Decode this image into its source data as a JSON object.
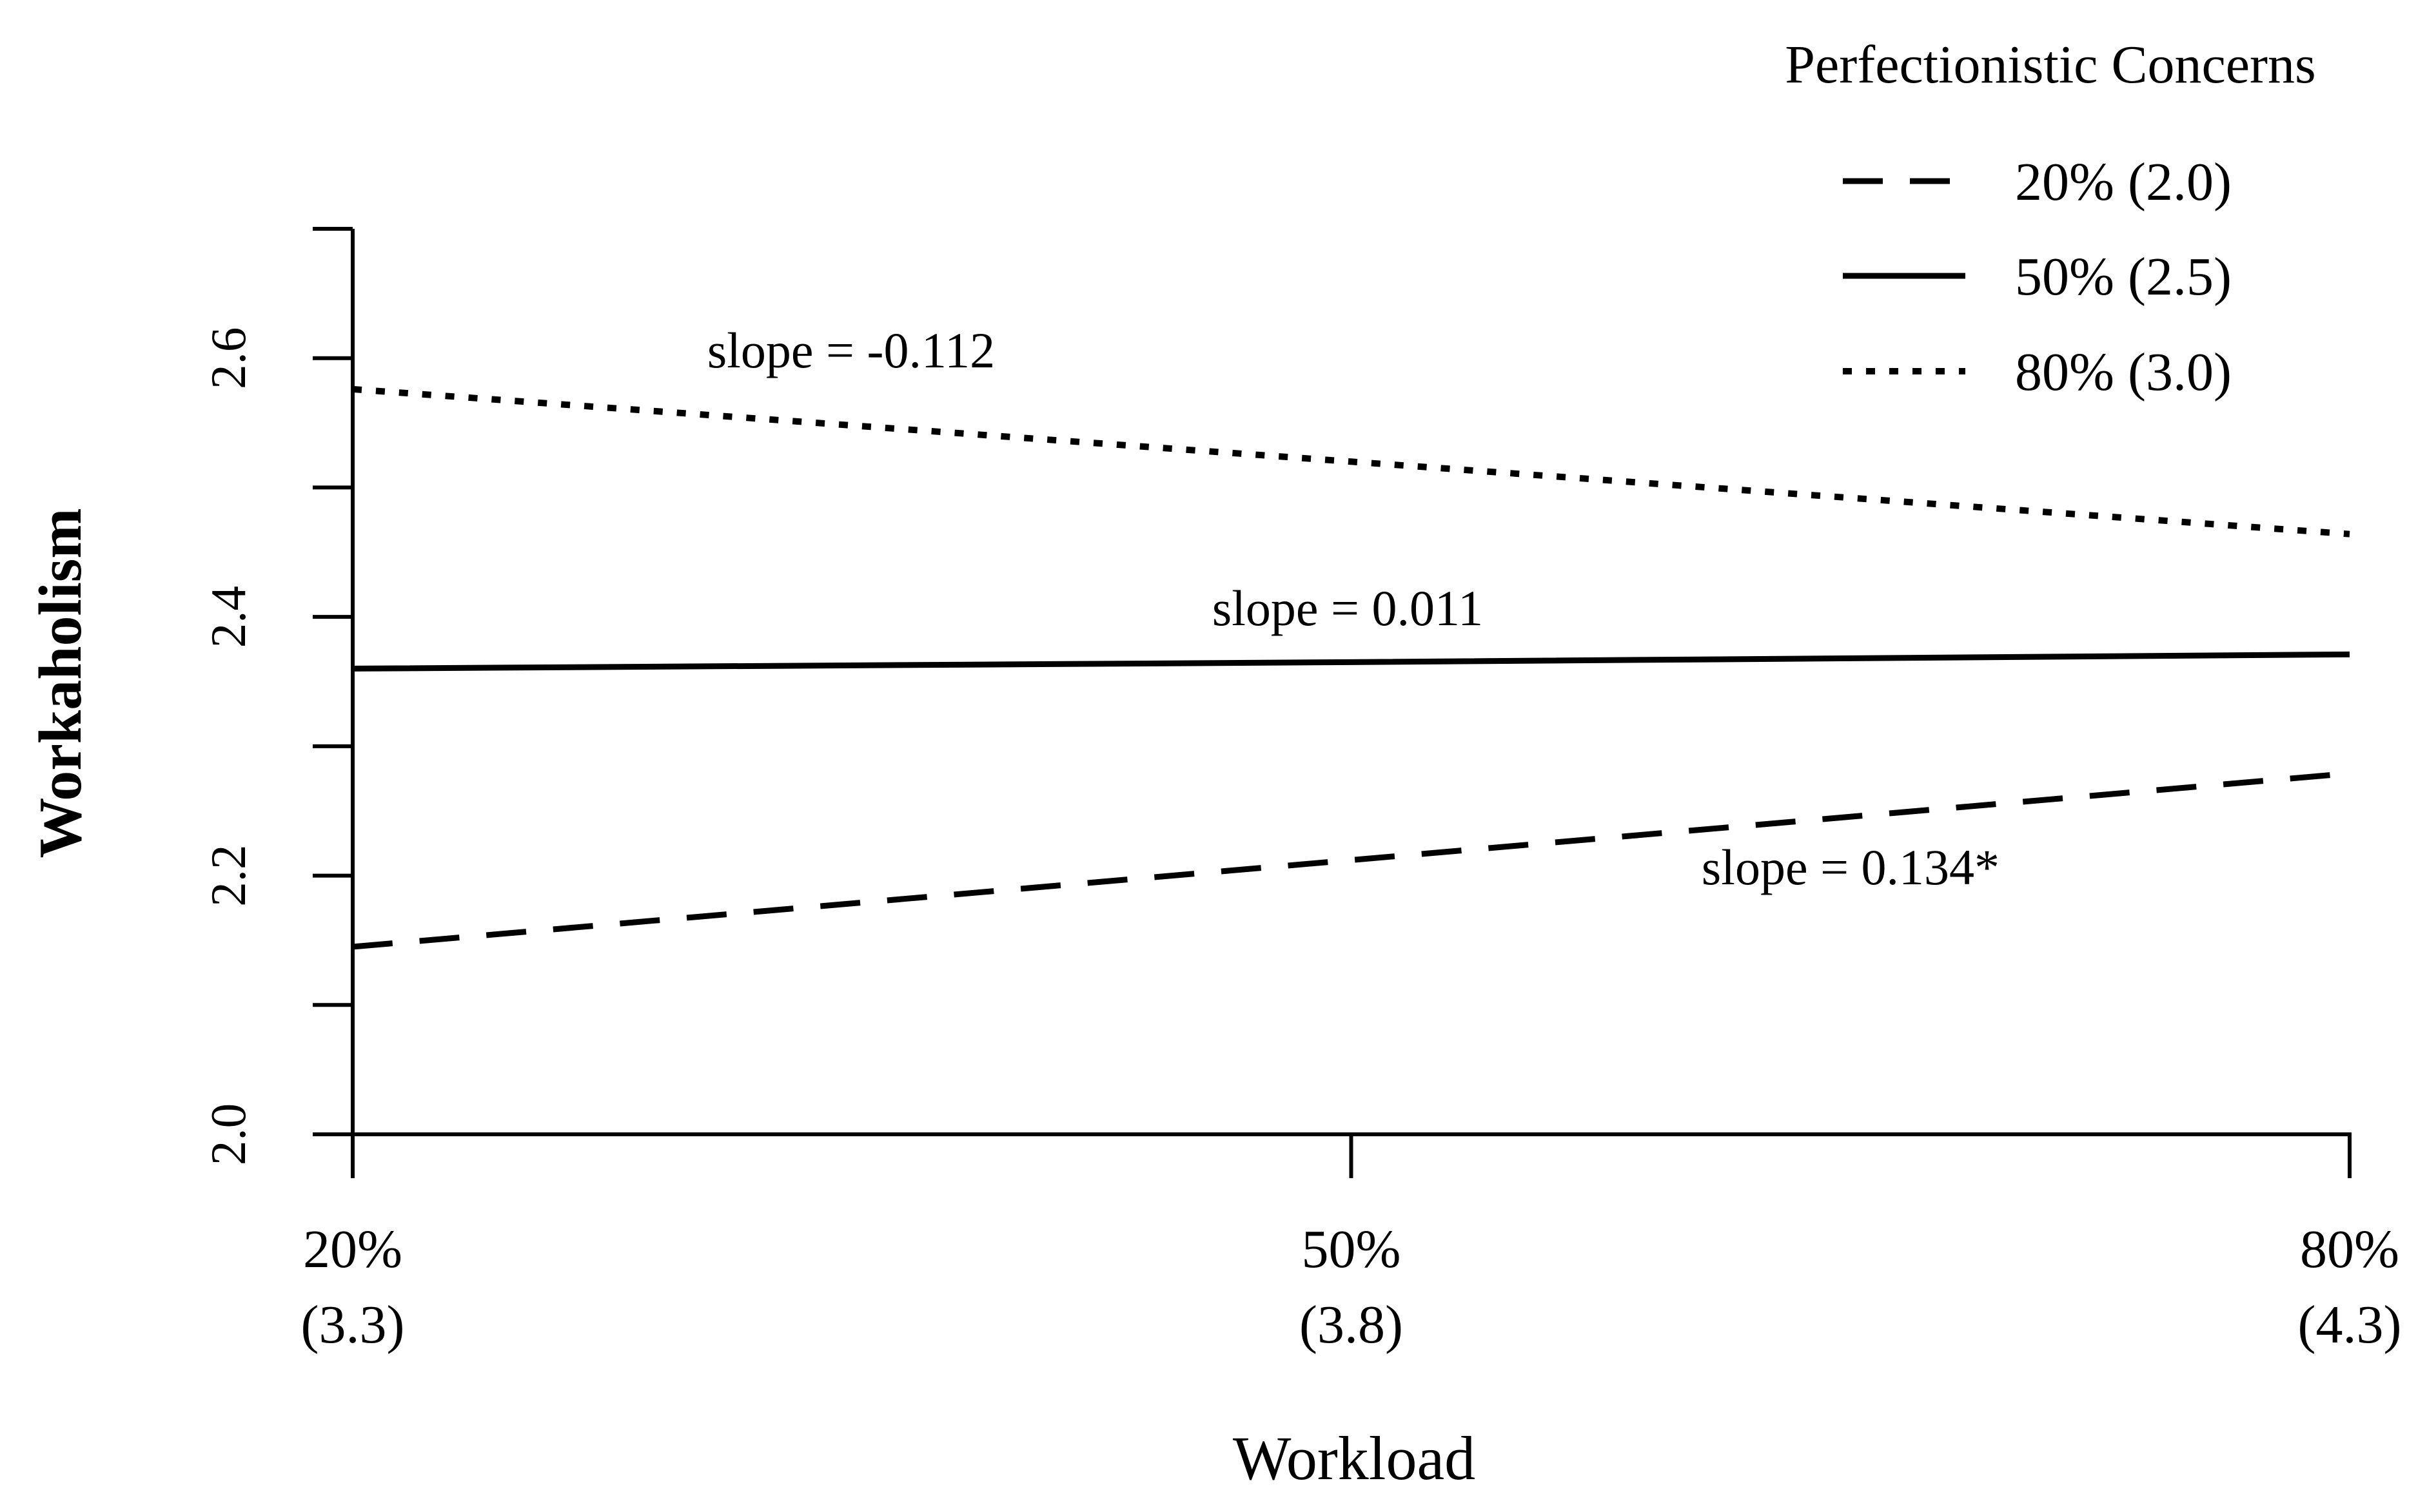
{
  "chart_data": {
    "type": "line",
    "xlabel": "Workload",
    "ylabel": "Workaholism",
    "categories": [
      "20%",
      "50%",
      "80%"
    ],
    "category_sublabels": [
      "(3.3)",
      "(3.8)",
      "(4.3)"
    ],
    "x": [
      0,
      1,
      2
    ],
    "ylim": [
      2.0,
      2.7
    ],
    "yticks": [
      2.0,
      2.1,
      2.2,
      2.3,
      2.4,
      2.5,
      2.6,
      2.7
    ],
    "ytick_labels": [
      "2.0",
      "",
      "2.2",
      "",
      "2.4",
      "",
      "2.6",
      ""
    ],
    "grid": false,
    "legend": {
      "title": "Perfectionistic Concerns",
      "placement": "top-right"
    },
    "series": [
      {
        "name": "20% (2.0)",
        "style": "dashed",
        "values": [
          2.145,
          2.212,
          2.279
        ],
        "annotation": "slope = 0.134*"
      },
      {
        "name": "50% (2.5)",
        "style": "solid",
        "values": [
          2.36,
          2.365,
          2.371
        ],
        "annotation": "slope = 0.011"
      },
      {
        "name": "80% (3.0)",
        "style": "dotted",
        "values": [
          2.576,
          2.52,
          2.464
        ],
        "annotation": "slope = -0.112"
      }
    ],
    "colors": {
      "line": "#000000",
      "background": "#ffffff"
    }
  }
}
